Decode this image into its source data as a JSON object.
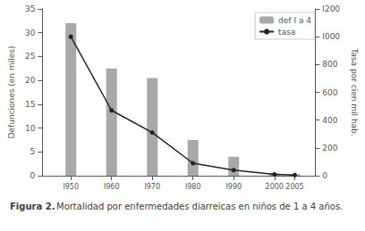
{
  "chart_data": {
    "type": "bar",
    "title": "Figura 2.",
    "subtitle": "Mortalidad por enfermedades diarreicas en niños de 1 a 4 años.",
    "x": [
      1950,
      1960,
      1970,
      1980,
      1990,
      2000,
      2005
    ],
    "xlim": [
      1943,
      2010
    ],
    "xticks": [
      {
        "value": 1950,
        "label": "I950"
      },
      {
        "value": 1960,
        "label": "I960"
      },
      {
        "value": 1970,
        "label": "I970"
      },
      {
        "value": 1980,
        "label": "I980"
      },
      {
        "value": 1990,
        "label": "I990"
      },
      2000,
      2005
    ],
    "ylabel": "Defunciones (en miles)",
    "ylim": [
      0,
      35
    ],
    "yticks": [
      0,
      5,
      10,
      15,
      20,
      25,
      30,
      35
    ],
    "y2label": "Tasa por cien mil hab.",
    "y2lim": [
      0,
      1200
    ],
    "y2ticks": [
      0,
      200,
      400,
      600,
      800,
      {
        "value": 1000,
        "label": "I000"
      },
      {
        "value": 1200,
        "label": "I200"
      }
    ],
    "series": [
      {
        "name": "def I a 4",
        "type": "bar",
        "color": "#a8a8a8",
        "values": [
          32,
          22.5,
          20.5,
          7.5,
          4.0,
          0.5,
          0.3
        ]
      },
      {
        "name": "tasa",
        "type": "line",
        "axis": "y2",
        "color": "#222222",
        "marker": "circle",
        "values": [
          1000,
          470,
          310,
          90,
          40,
          10,
          5
        ]
      }
    ],
    "legend": "upper right",
    "grid": false
  }
}
